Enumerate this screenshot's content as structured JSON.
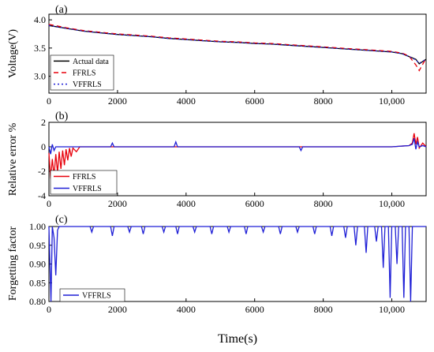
{
  "chart_data": [
    {
      "type": "line",
      "panel_label": "(a)",
      "ylabel": "Voltage(V)",
      "xlim": [
        0,
        11000
      ],
      "ylim": [
        2.7,
        4.1
      ],
      "xticks": [
        0,
        2000,
        4000,
        6000,
        8000,
        10000
      ],
      "xtick_labels": [
        "0",
        "2000",
        "4000",
        "6000",
        "8000",
        "10,000"
      ],
      "yticks": [
        3.0,
        3.5,
        4.0
      ],
      "ytick_labels": [
        "3.0",
        "3.5",
        "4.0"
      ],
      "legend_position": "bottom-left",
      "series": [
        {
          "name": "Actual data",
          "color": "#000000",
          "style": "solid",
          "x": [
            0,
            500,
            1000,
            1500,
            2000,
            2500,
            3000,
            3500,
            4000,
            4500,
            5000,
            5500,
            6000,
            6500,
            7000,
            7500,
            8000,
            8500,
            9000,
            9500,
            10000,
            10300,
            10500,
            10700,
            10800,
            11000
          ],
          "y": [
            3.9,
            3.85,
            3.8,
            3.77,
            3.74,
            3.72,
            3.7,
            3.67,
            3.65,
            3.63,
            3.61,
            3.6,
            3.58,
            3.57,
            3.55,
            3.53,
            3.51,
            3.49,
            3.47,
            3.45,
            3.43,
            3.4,
            3.35,
            3.3,
            3.22,
            3.3
          ]
        },
        {
          "name": "FFRLS",
          "color": "#e8000b",
          "style": "dashed",
          "x": [
            0,
            500,
            1000,
            1500,
            2000,
            2500,
            3000,
            3500,
            4000,
            4500,
            5000,
            5500,
            6000,
            6500,
            7000,
            7500,
            8000,
            8500,
            9000,
            9500,
            10000,
            10300,
            10500,
            10700,
            10800,
            11000
          ],
          "y": [
            3.92,
            3.86,
            3.81,
            3.78,
            3.75,
            3.73,
            3.71,
            3.68,
            3.66,
            3.64,
            3.62,
            3.61,
            3.59,
            3.58,
            3.56,
            3.54,
            3.52,
            3.5,
            3.48,
            3.46,
            3.44,
            3.41,
            3.36,
            3.2,
            3.1,
            3.32
          ]
        },
        {
          "name": "VFFRLS",
          "color": "#1f1fd6",
          "style": "dotted",
          "x": [
            0,
            500,
            1000,
            1500,
            2000,
            2500,
            3000,
            3500,
            4000,
            4500,
            5000,
            5500,
            6000,
            6500,
            7000,
            7500,
            8000,
            8500,
            9000,
            9500,
            10000,
            10300,
            10500,
            10700,
            10800,
            11000
          ],
          "y": [
            3.9,
            3.85,
            3.8,
            3.77,
            3.74,
            3.72,
            3.7,
            3.67,
            3.65,
            3.63,
            3.61,
            3.6,
            3.58,
            3.57,
            3.55,
            3.53,
            3.51,
            3.49,
            3.47,
            3.45,
            3.43,
            3.4,
            3.35,
            3.29,
            3.23,
            3.3
          ]
        }
      ]
    },
    {
      "type": "line",
      "panel_label": "(b)",
      "ylabel": "Relative error %",
      "xlim": [
        0,
        11000
      ],
      "ylim": [
        -4,
        2
      ],
      "xticks": [
        0,
        2000,
        4000,
        6000,
        8000,
        10000
      ],
      "xtick_labels": [
        "0",
        "2000",
        "4000",
        "6000",
        "8000",
        "10,000"
      ],
      "yticks": [
        -4,
        -2,
        0,
        2
      ],
      "ytick_labels": [
        "-4",
        "-2",
        "0",
        "2"
      ],
      "legend_position": "bottom-left",
      "series": [
        {
          "name": "FFRLS",
          "color": "#e8000b",
          "style": "solid",
          "x": [
            0,
            50,
            100,
            150,
            200,
            250,
            300,
            350,
            400,
            450,
            500,
            550,
            600,
            650,
            700,
            800,
            900,
            1000,
            3000,
            6000,
            9000,
            10000,
            10500,
            10600,
            10650,
            10700,
            10750,
            10800,
            10900,
            11000
          ],
          "y": [
            -0.5,
            -2.6,
            -1.0,
            -2.4,
            -0.6,
            -2.1,
            -0.4,
            -1.8,
            -0.3,
            -1.5,
            -0.2,
            -1.1,
            -0.1,
            -0.8,
            -0.1,
            -0.4,
            0.0,
            0.0,
            0.0,
            0.0,
            0.0,
            0.0,
            0.1,
            0.3,
            1.1,
            0.2,
            0.8,
            -0.1,
            0.3,
            0.0
          ]
        },
        {
          "name": "VFFRLS",
          "color": "#1f1fd6",
          "style": "solid",
          "x": [
            0,
            50,
            100,
            150,
            200,
            1000,
            1800,
            1850,
            1900,
            3650,
            3700,
            3750,
            7300,
            7350,
            7400,
            10000,
            10500,
            10600,
            10650,
            10700,
            10750,
            10800,
            10900,
            11000
          ],
          "y": [
            0.0,
            -0.6,
            0.2,
            -0.3,
            0.0,
            0.0,
            0.0,
            0.3,
            0.0,
            0.0,
            0.4,
            0.0,
            0.0,
            -0.3,
            0.0,
            0.0,
            0.1,
            0.2,
            0.7,
            -0.2,
            0.4,
            0.0,
            0.1,
            0.0
          ]
        }
      ]
    },
    {
      "type": "line",
      "panel_label": "(c)",
      "ylabel": "Forgetting factor",
      "xlabel": "Time(s)",
      "xlim": [
        0,
        11000
      ],
      "ylim": [
        0.8,
        1.0
      ],
      "xticks": [
        0,
        2000,
        4000,
        6000,
        8000,
        10000
      ],
      "xtick_labels": [
        "0",
        "2000",
        "4000",
        "6000",
        "8000",
        "10,000"
      ],
      "yticks": [
        0.8,
        0.85,
        0.9,
        0.95,
        1.0
      ],
      "ytick_labels": [
        "0.80",
        "0.85",
        "0.90",
        "0.95",
        "1.00"
      ],
      "legend_position": "bottom-left",
      "series": [
        {
          "name": "VFFRLS",
          "color": "#1f1fd6",
          "style": "solid",
          "x": [
            0,
            60,
            100,
            150,
            200,
            250,
            300,
            1200,
            1250,
            1300,
            1800,
            1850,
            1900,
            2300,
            2350,
            2400,
            2700,
            2750,
            2800,
            3300,
            3350,
            3400,
            3700,
            3750,
            3800,
            4200,
            4250,
            4300,
            4700,
            4750,
            4800,
            5200,
            5250,
            5300,
            5700,
            5750,
            5800,
            6200,
            6250,
            6300,
            6700,
            6750,
            6800,
            7200,
            7250,
            7300,
            7700,
            7750,
            7800,
            8200,
            8250,
            8300,
            8600,
            8650,
            8700,
            8900,
            8950,
            9000,
            9200,
            9250,
            9300,
            9500,
            9550,
            9600,
            9700,
            9750,
            9800,
            9900,
            9950,
            10000,
            10100,
            10150,
            10200,
            10300,
            10350,
            10400,
            10500,
            10550,
            10600,
            10700,
            11000
          ],
          "y": [
            1.0,
            0.8,
            1.0,
            0.97,
            0.87,
            0.99,
            1.0,
            1.0,
            0.985,
            1.0,
            1.0,
            0.975,
            1.0,
            1.0,
            0.985,
            1.0,
            1.0,
            0.98,
            1.0,
            1.0,
            0.985,
            1.0,
            1.0,
            0.98,
            1.0,
            1.0,
            0.985,
            1.0,
            1.0,
            0.98,
            1.0,
            1.0,
            0.985,
            1.0,
            1.0,
            0.98,
            1.0,
            1.0,
            0.985,
            1.0,
            1.0,
            0.98,
            1.0,
            1.0,
            0.985,
            1.0,
            1.0,
            0.98,
            1.0,
            1.0,
            0.975,
            1.0,
            1.0,
            0.97,
            1.0,
            1.0,
            0.95,
            1.0,
            1.0,
            0.93,
            1.0,
            1.0,
            0.96,
            1.0,
            1.0,
            0.89,
            1.0,
            1.0,
            0.81,
            1.0,
            1.0,
            0.9,
            1.0,
            1.0,
            0.81,
            1.0,
            1.0,
            0.8,
            1.0,
            1.0,
            1.0
          ]
        }
      ]
    }
  ]
}
